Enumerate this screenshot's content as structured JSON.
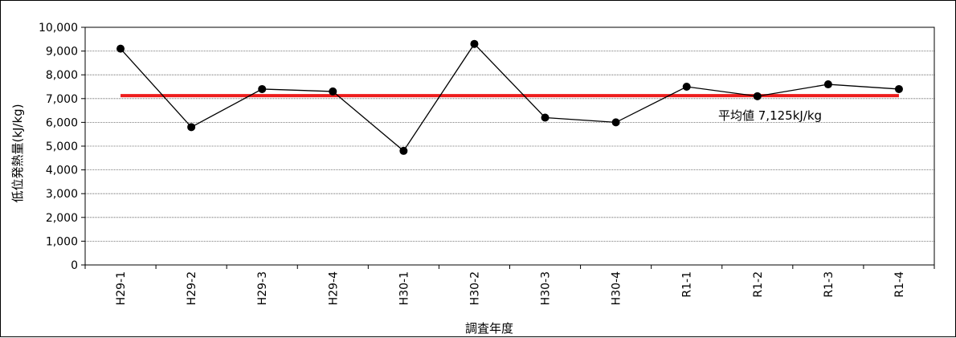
{
  "chart_data": {
    "type": "line",
    "xlabel": "調査年度",
    "ylabel": "低位発熱量(kJ/kg)",
    "categories": [
      "H29-1",
      "H29-2",
      "H29-3",
      "H29-4",
      "H30-1",
      "H30-2",
      "H30-3",
      "H30-4",
      "R1-1",
      "R1-2",
      "R1-3",
      "R1-4"
    ],
    "ylim": [
      0,
      10000
    ],
    "yticks": [
      0,
      1000,
      2000,
      3000,
      4000,
      5000,
      6000,
      7000,
      8000,
      9000,
      10000
    ],
    "ytick_labels": [
      "0",
      "1,000",
      "2,000",
      "3,000",
      "4,000",
      "5,000",
      "6,000",
      "7,000",
      "8,000",
      "9,000",
      "10,000"
    ],
    "grid": true,
    "legend": "none",
    "series": [
      {
        "values": [
          9100,
          5800,
          7400,
          7300,
          4800,
          9300,
          6200,
          6000,
          7500,
          7100,
          7600,
          7400
        ],
        "color": "#000000"
      }
    ],
    "reference_line": {
      "value": 7125,
      "color": "#ee1c1c",
      "label": "平均値 7,125kJ/kg"
    }
  }
}
